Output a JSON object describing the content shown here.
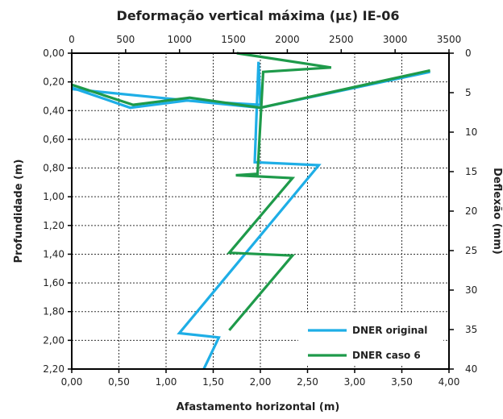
{
  "chart_data": {
    "type": "line",
    "title": "Deformação vertical máxima (με) IE-06",
    "xlabel": "Afastamento horizontal (m)",
    "ylabel": "Profundidade (m)",
    "y2label": "Deflexão (mm)",
    "xlim": [
      0,
      4
    ],
    "ylim": [
      0,
      2.2
    ],
    "x2lim": [
      0,
      3500
    ],
    "y2lim": [
      0,
      40
    ],
    "x_ticks": [
      "0,00",
      "0,50",
      "1,00",
      "1,50",
      "2,00",
      "2,50",
      "3,00",
      "3,50",
      "4,00"
    ],
    "y_ticks": [
      "0,00",
      "0,20",
      "0,40",
      "0,60",
      "0,80",
      "1,00",
      "1,20",
      "1,40",
      "1,60",
      "1,80",
      "2,00",
      "2,20"
    ],
    "x2_ticks": [
      "0",
      "500",
      "1000",
      "1500",
      "2000",
      "2500",
      "3000",
      "3500"
    ],
    "y2_ticks": [
      "0",
      "5",
      "10",
      "15",
      "20",
      "25",
      "30",
      "35",
      "40"
    ],
    "grid": true,
    "legend_position": "bottom-right",
    "series": [
      {
        "name": "DNER original",
        "color": "#1eaee6",
        "points": [
          [
            0.0,
            0.24
          ],
          [
            0.62,
            0.38
          ],
          [
            1.22,
            0.33
          ],
          [
            2.0,
            0.36
          ],
          [
            1.98,
            0.06
          ],
          [
            1.94,
            0.76
          ],
          [
            2.62,
            0.78
          ],
          [
            1.14,
            1.95
          ],
          [
            1.56,
            1.98
          ],
          [
            1.4,
            2.2
          ]
        ]
      },
      {
        "name": "DNER caso 6",
        "color": "#1e9a4a",
        "points": [
          [
            1.75,
            0.0
          ],
          [
            2.75,
            0.1
          ],
          [
            2.03,
            0.13
          ],
          [
            1.97,
            0.84
          ],
          [
            1.74,
            0.85
          ],
          [
            2.34,
            0.87
          ],
          [
            1.67,
            1.39
          ],
          [
            2.34,
            1.41
          ],
          [
            1.67,
            1.93
          ]
        ]
      },
      {
        "name": "",
        "color": "#1eaee6",
        "points": [
          [
            0.0,
            0.25
          ],
          [
            2.0,
            0.38
          ],
          [
            3.8,
            0.13
          ]
        ]
      },
      {
        "name": "",
        "color": "#1e9a4a",
        "points": [
          [
            0.0,
            0.22
          ],
          [
            0.65,
            0.36
          ],
          [
            1.25,
            0.31
          ],
          [
            2.0,
            0.38
          ],
          [
            3.8,
            0.12
          ]
        ]
      }
    ]
  }
}
